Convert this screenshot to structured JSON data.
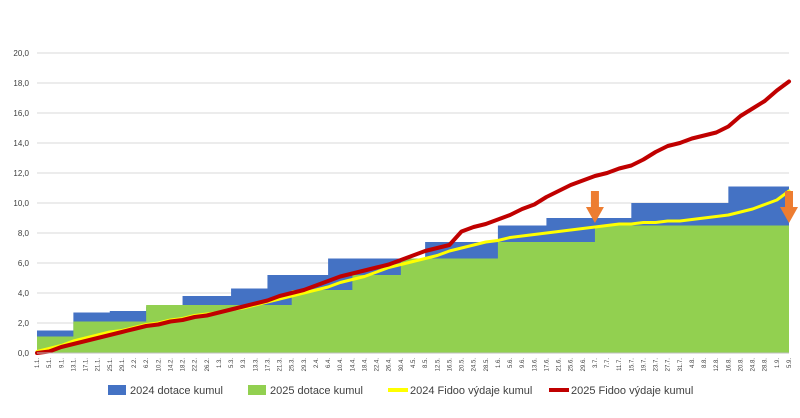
{
  "chart_data": {
    "type": "area",
    "title": "",
    "xlabel": "",
    "ylabel": "",
    "ylim": [
      0,
      20
    ],
    "y_ticks": [
      "0,0",
      "2,0",
      "4,0",
      "6,0",
      "8,0",
      "10,0",
      "12,0",
      "14,0",
      "16,0",
      "18,0",
      "20,0"
    ],
    "grid": true,
    "legend_position": "bottom",
    "categories": [
      "1.1.",
      "5.1.",
      "9.1.",
      "13.1.",
      "17.1.",
      "21.1.",
      "25.1.",
      "29.1.",
      "2.2.",
      "6.2.",
      "10.2.",
      "14.2.",
      "18.2.",
      "22.2.",
      "26.2.",
      "1.3.",
      "5.3.",
      "9.3.",
      "13.3.",
      "17.3.",
      "21.3.",
      "25.3.",
      "29.3.",
      "2.4.",
      "6.4.",
      "10.4.",
      "14.4.",
      "18.4.",
      "22.4.",
      "26.4.",
      "30.4.",
      "4.5.",
      "8.5.",
      "12.5.",
      "16.5.",
      "20.5.",
      "24.5.",
      "28.5.",
      "1.6.",
      "5.6.",
      "9.6.",
      "13.6.",
      "17.6.",
      "21.6.",
      "25.6.",
      "29.6.",
      "3.7.",
      "7.7.",
      "11.7.",
      "15.7.",
      "19.7.",
      "23.7.",
      "27.7.",
      "31.7.",
      "4.8.",
      "8.8.",
      "12.8.",
      "16.8.",
      "20.8.",
      "24.8.",
      "28.8.",
      "1.9.",
      "5.9."
    ],
    "series": [
      {
        "name": "2024 dotace kumul",
        "color": "#4472c4",
        "style": "step-area",
        "values": [
          1.5,
          1.5,
          1.5,
          2.7,
          2.7,
          2.7,
          2.8,
          2.8,
          2.8,
          3.1,
          3.1,
          3.1,
          3.8,
          3.8,
          3.8,
          3.8,
          4.3,
          4.3,
          4.3,
          5.2,
          5.2,
          5.2,
          5.2,
          5.2,
          6.3,
          6.3,
          6.3,
          6.3,
          6.3,
          6.3,
          6.3,
          6.3,
          7.4,
          7.4,
          7.4,
          7.4,
          7.4,
          7.4,
          8.5,
          8.5,
          8.5,
          8.5,
          9.0,
          9.0,
          9.0,
          9.0,
          9.0,
          9.0,
          9.0,
          10.0,
          10.0,
          10.0,
          10.0,
          10.0,
          10.0,
          10.0,
          10.0,
          11.1,
          11.1,
          11.1,
          11.1,
          11.1,
          11.1
        ]
      },
      {
        "name": "2025 dotace kumul",
        "color": "#92d050",
        "style": "step-area",
        "values": [
          1.1,
          1.1,
          1.1,
          2.1,
          2.1,
          2.1,
          2.1,
          2.1,
          2.1,
          3.2,
          3.2,
          3.2,
          3.2,
          3.2,
          3.2,
          3.2,
          3.2,
          3.2,
          3.2,
          3.2,
          3.2,
          4.2,
          4.2,
          4.2,
          4.2,
          4.2,
          5.2,
          5.2,
          5.2,
          5.2,
          6.3,
          6.3,
          6.3,
          6.3,
          6.3,
          6.3,
          6.3,
          6.3,
          7.4,
          7.4,
          7.4,
          7.4,
          7.4,
          7.4,
          7.4,
          7.4,
          8.5,
          8.5,
          8.5,
          8.5,
          8.5,
          8.5,
          8.5,
          8.5,
          8.5,
          8.5,
          8.5,
          8.5,
          8.5,
          8.5,
          8.5,
          8.5,
          8.8
        ]
      },
      {
        "name": "2024 Fidoo výdaje kumul",
        "color": "#ffff00",
        "style": "line",
        "values": [
          0.1,
          0.3,
          0.5,
          0.8,
          1.0,
          1.2,
          1.4,
          1.5,
          1.7,
          1.9,
          2.0,
          2.2,
          2.3,
          2.5,
          2.6,
          2.7,
          2.9,
          3.0,
          3.2,
          3.4,
          3.6,
          3.8,
          4.0,
          4.2,
          4.4,
          4.7,
          4.9,
          5.1,
          5.4,
          5.7,
          5.9,
          6.1,
          6.3,
          6.5,
          6.8,
          7.0,
          7.2,
          7.4,
          7.5,
          7.7,
          7.8,
          7.9,
          8.0,
          8.1,
          8.2,
          8.3,
          8.4,
          8.5,
          8.6,
          8.6,
          8.7,
          8.7,
          8.8,
          8.8,
          8.9,
          9.0,
          9.1,
          9.2,
          9.4,
          9.6,
          9.9,
          10.2,
          10.8
        ]
      },
      {
        "name": "2025 Fidoo výdaje kumul",
        "color": "#c00000",
        "style": "line",
        "values": [
          0.0,
          0.1,
          0.4,
          0.6,
          0.8,
          1.0,
          1.2,
          1.4,
          1.6,
          1.8,
          1.9,
          2.1,
          2.2,
          2.4,
          2.5,
          2.7,
          2.9,
          3.1,
          3.3,
          3.5,
          3.8,
          4.0,
          4.2,
          4.5,
          4.8,
          5.1,
          5.3,
          5.5,
          5.7,
          5.9,
          6.2,
          6.5,
          6.8,
          7.0,
          7.2,
          8.1,
          8.4,
          8.6,
          8.9,
          9.2,
          9.6,
          9.9,
          10.4,
          10.8,
          11.2,
          11.5,
          11.8,
          12.0,
          12.3,
          12.5,
          12.9,
          13.4,
          13.8,
          14.0,
          14.3,
          14.5,
          14.7,
          15.1,
          15.8,
          16.3,
          16.8,
          17.5,
          18.1
        ]
      }
    ],
    "annotations": [
      {
        "type": "arrow-down",
        "color": "#ed7d31",
        "category": "3.7."
      },
      {
        "type": "arrow-down",
        "color": "#ed7d31",
        "category": "5.9."
      }
    ]
  }
}
